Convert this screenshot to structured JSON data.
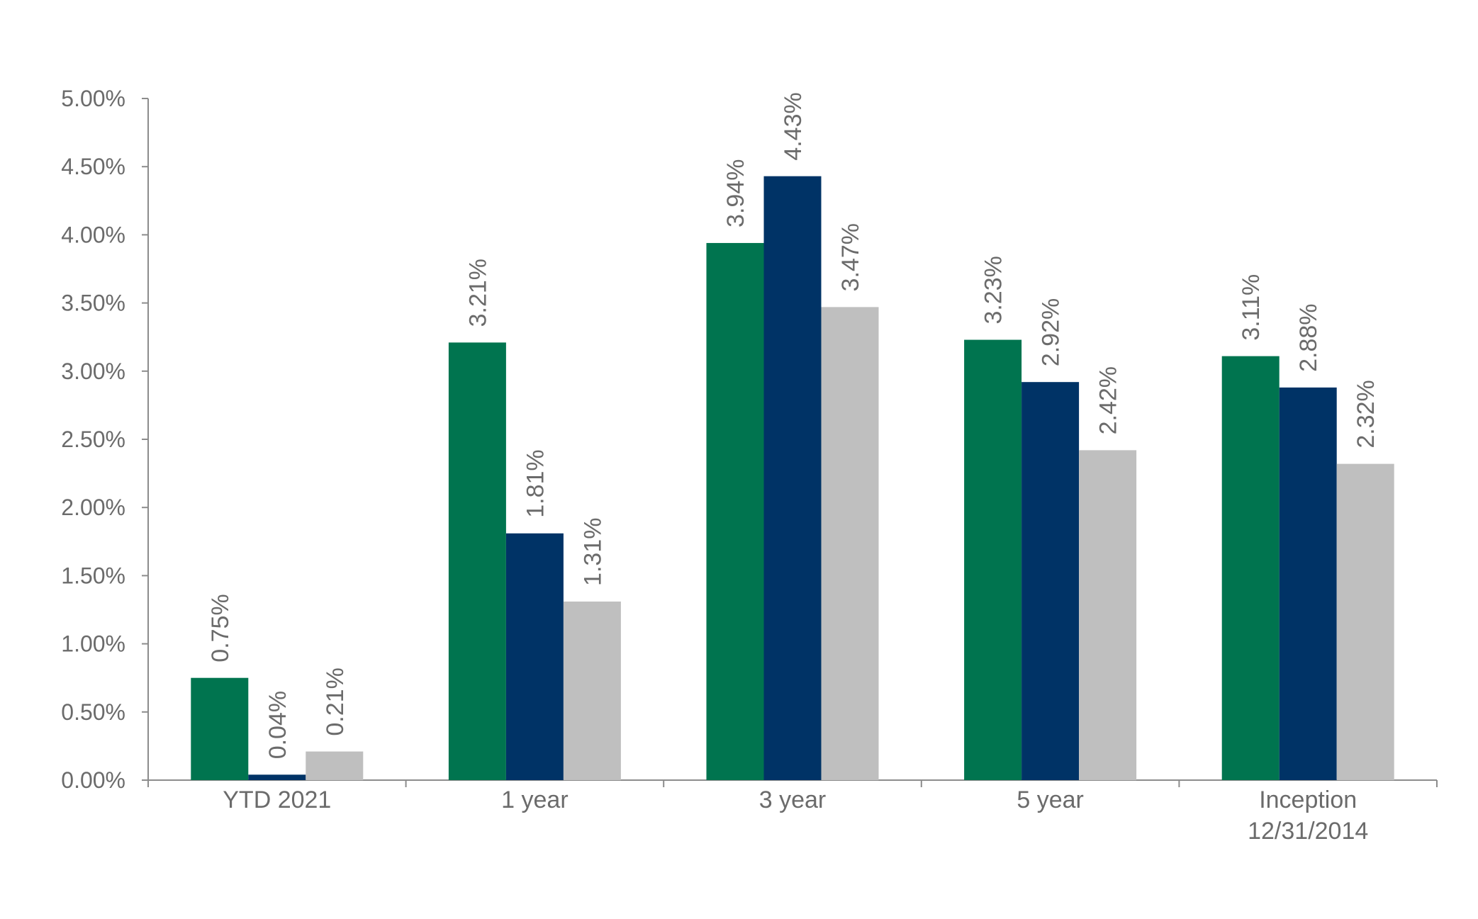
{
  "chart_data": {
    "type": "bar",
    "categories": [
      [
        "YTD 2021"
      ],
      [
        "1 year"
      ],
      [
        "3 year"
      ],
      [
        "5 year"
      ],
      [
        "Inception",
        "12/31/2014"
      ]
    ],
    "series": [
      {
        "color": "#00744f",
        "values": [
          0.75,
          3.21,
          3.94,
          3.23,
          3.11
        ],
        "labels": [
          "0.75%",
          "3.21%",
          "3.94%",
          "3.23%",
          "3.11%"
        ]
      },
      {
        "color": "#003366",
        "values": [
          0.04,
          1.81,
          4.43,
          2.92,
          2.88
        ],
        "labels": [
          "0.04%",
          "1.81%",
          "4.43%",
          "2.92%",
          "2.88%"
        ]
      },
      {
        "color": "#bfbfbf",
        "values": [
          0.21,
          1.31,
          3.47,
          2.42,
          2.32
        ],
        "labels": [
          "0.21%",
          "1.31%",
          "3.47%",
          "2.42%",
          "2.32%"
        ]
      }
    ],
    "y_ticks": [
      "0.00%",
      "0.50%",
      "1.00%",
      "1.50%",
      "2.00%",
      "2.50%",
      "3.00%",
      "3.50%",
      "4.00%",
      "4.50%",
      "5.00%"
    ],
    "ylim": [
      0,
      5
    ],
    "title": "",
    "xlabel": "",
    "ylabel": "",
    "legend": "none",
    "grid": false
  }
}
